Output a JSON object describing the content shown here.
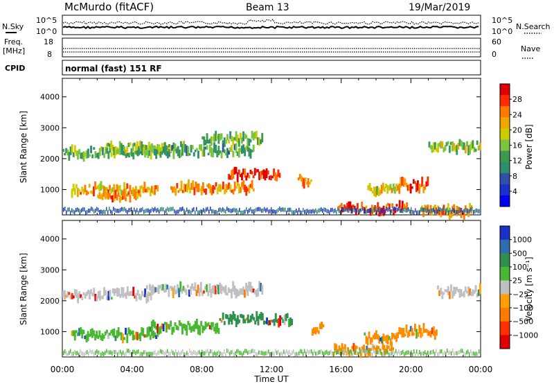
{
  "header": {
    "title": "McMurdo (fitACF)",
    "beam": "Beam 13",
    "date": "19/Mar/2019"
  },
  "top_panels": {
    "nsky_label": "N.Sky",
    "nsky_ticks": [
      "10^5",
      "10^0"
    ],
    "nsearch_label": "N.Search",
    "nsearch_ticks": [
      "10^5",
      "10^0"
    ],
    "freq_label_1": "Freq.",
    "freq_label_2": "[MHz]",
    "freq_ticks": [
      "18",
      "8"
    ],
    "nave_label": "Nave",
    "nave_ticks": [
      "60",
      "0"
    ],
    "cpid_label": "CPID",
    "cpid_text": "normal (fast) 151 RF"
  },
  "chart_data": [
    {
      "type": "heatmap",
      "name": "power",
      "ylabel": "Slant Range [km]",
      "xlabel": "Time UT",
      "x_ticks": [
        "00:00",
        "04:00",
        "08:00",
        "12:00",
        "16:00",
        "20:00",
        "00:00"
      ],
      "x_range_hours": [
        0,
        24
      ],
      "y_ticks": [
        "1000",
        "2000",
        "3000",
        "4000"
      ],
      "ylim": [
        180,
        4600
      ],
      "colorbar_label": "Power [dB]",
      "colorbar_ticks": [
        "28",
        "24",
        "20",
        "16",
        "12",
        "8",
        "4"
      ],
      "colorbar_colors": [
        "#e10000",
        "#ff2a00",
        "#ff7a00",
        "#f0a800",
        "#cccc00",
        "#7cc440",
        "#3a9a50",
        "#2e8f6f",
        "#3050a8",
        "#1a30c8",
        "#0000ee"
      ],
      "range_lines": [
        {
          "t0": 0.0,
          "t1": 5.2,
          "r": 2200,
          "level": 0.45
        },
        {
          "t0": 2.5,
          "t1": 7.0,
          "r": 2350,
          "level": 0.5
        },
        {
          "t0": 5.0,
          "t1": 11.0,
          "r": 2250,
          "level": 0.4
        },
        {
          "t0": 8.0,
          "t1": 11.5,
          "r": 2650,
          "level": 0.45
        },
        {
          "t0": 0.5,
          "t1": 5.5,
          "r": 1000,
          "level": 0.7
        },
        {
          "t0": 2.0,
          "t1": 4.5,
          "r": 800,
          "level": 0.8
        },
        {
          "t0": 6.2,
          "t1": 11.0,
          "r": 1050,
          "level": 0.75
        },
        {
          "t0": 9.5,
          "t1": 12.5,
          "r": 1500,
          "level": 0.95
        },
        {
          "t0": 13.5,
          "t1": 14.3,
          "r": 1300,
          "level": 0.75
        },
        {
          "t0": 15.8,
          "t1": 19.8,
          "r": 400,
          "level": 0.9
        },
        {
          "t0": 17.5,
          "t1": 19.2,
          "r": 1000,
          "level": 0.6
        },
        {
          "t0": 19.2,
          "t1": 21.0,
          "r": 1150,
          "level": 0.85
        },
        {
          "t0": 20.5,
          "t1": 23.5,
          "r": 300,
          "level": 0.75
        },
        {
          "t0": 21.0,
          "t1": 24.0,
          "r": 2400,
          "level": 0.5
        }
      ]
    },
    {
      "type": "heatmap",
      "name": "velocity",
      "ylabel": "Slant Range [km]",
      "xlabel": "Time UT",
      "x_ticks": [
        "00:00",
        "04:00",
        "08:00",
        "12:00",
        "16:00",
        "20:00",
        "00:00"
      ],
      "x_range_hours": [
        0,
        24
      ],
      "y_ticks": [
        "1000",
        "2000",
        "3000",
        "4000"
      ],
      "ylim": [
        180,
        4600
      ],
      "colorbar_label": "Velocity [m s⁻¹]",
      "colorbar_ticks": [
        "1000",
        "500",
        "100",
        "25",
        "−25",
        "−100",
        "−500",
        "−1000"
      ],
      "colorbar_colors": [
        "#1a30c8",
        "#2e6eb0",
        "#2e8f4f",
        "#48b830",
        "#c0c0c0",
        "#ffa000",
        "#ff7a00",
        "#ff3000",
        "#e10000"
      ],
      "range_lines": [
        {
          "t0": 0.0,
          "t1": 5.2,
          "r": 2200,
          "color": "#c0c0c0"
        },
        {
          "t0": 4.8,
          "t1": 11.5,
          "r": 2350,
          "color": "#c0c0c0"
        },
        {
          "t0": 0.5,
          "t1": 5.5,
          "r": 900,
          "color": "#48b830"
        },
        {
          "t0": 5.0,
          "t1": 9.0,
          "r": 1150,
          "color": "#48b830"
        },
        {
          "t0": 9.0,
          "t1": 13.2,
          "r": 1400,
          "color": "#2e8f4f"
        },
        {
          "t0": 14.3,
          "t1": 15.0,
          "r": 1100,
          "color": "#ff8c00"
        },
        {
          "t0": 15.5,
          "t1": 19.0,
          "r": 400,
          "color": "#ff8c00"
        },
        {
          "t0": 17.3,
          "t1": 19.2,
          "r": 800,
          "color": "#ff8c00"
        },
        {
          "t0": 19.2,
          "t1": 21.5,
          "r": 1000,
          "color": "#ff8c00"
        },
        {
          "t0": 21.5,
          "t1": 24.0,
          "r": 2300,
          "color": "#c0c0c0"
        }
      ]
    }
  ],
  "colors": {
    "axis": "#000000",
    "frame_bg": "#ffffff"
  }
}
